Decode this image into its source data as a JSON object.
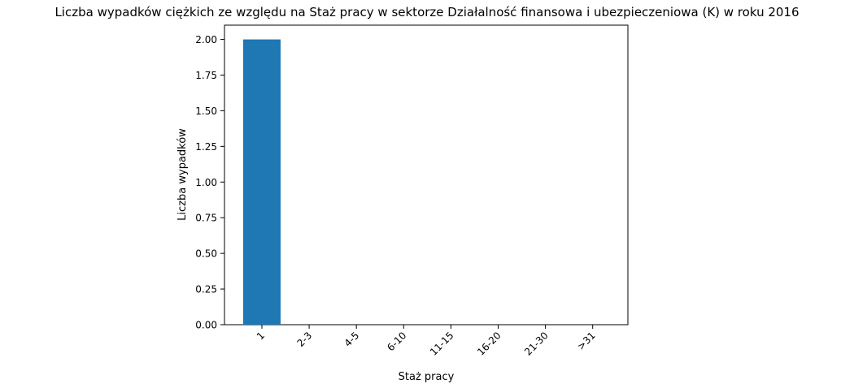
{
  "chart_data": {
    "type": "bar",
    "title": "Liczba wypadków ciężkich ze względu na Staż pracy w sektorze Działalność finansowa i ubezpieczeniowa (K)   w roku 2016",
    "xlabel": "Staż pracy",
    "ylabel": "Liczba wypadków",
    "categories": [
      "1",
      "2-3",
      "4-5",
      "6-10",
      "11-15",
      "16-20",
      "21-30",
      ">31"
    ],
    "values": [
      2,
      0,
      0,
      0,
      0,
      0,
      0,
      0
    ],
    "ylim": [
      0,
      2.1
    ],
    "yticks": [
      "0.00",
      "0.25",
      "0.50",
      "0.75",
      "1.00",
      "1.25",
      "1.50",
      "1.75",
      "2.00"
    ],
    "bar_color": "#1f77b4",
    "grid": false,
    "legend": "none"
  }
}
